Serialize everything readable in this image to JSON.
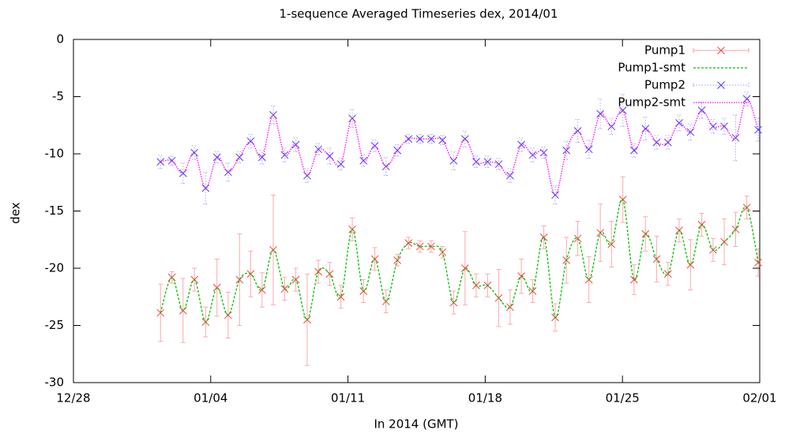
{
  "chart_data": {
    "type": "line",
    "title": "1-sequence Averaged Timeseries dex, 2014/01",
    "xlabel": "In 2014 (GMT)",
    "ylabel": "dex",
    "xlim": [
      0,
      35
    ],
    "xticks": [
      {
        "value": 0,
        "label": "12/28"
      },
      {
        "value": 7,
        "label": "01/04"
      },
      {
        "value": 14,
        "label": "01/11"
      },
      {
        "value": 21,
        "label": "01/18"
      },
      {
        "value": 28,
        "label": "01/25"
      },
      {
        "value": 35,
        "label": "02/01"
      }
    ],
    "ylim": [
      -30,
      0
    ],
    "yticks": [
      0,
      -5,
      -10,
      -15,
      -20,
      -25,
      -30
    ],
    "legend": "top-right",
    "x": [
      4.44,
      5.02,
      5.59,
      6.17,
      6.74,
      7.32,
      7.89,
      8.47,
      9.04,
      9.62,
      10.19,
      10.77,
      11.34,
      11.92,
      12.49,
      13.07,
      13.64,
      14.22,
      14.79,
      15.37,
      15.94,
      16.52,
      17.09,
      17.67,
      18.24,
      18.82,
      19.39,
      19.97,
      20.54,
      21.12,
      21.69,
      22.27,
      22.84,
      23.42,
      23.99,
      24.57,
      25.14,
      25.72,
      26.29,
      26.87,
      27.44,
      28.02,
      28.59,
      29.17,
      29.74,
      30.32,
      30.89,
      31.47,
      32.04,
      32.62,
      33.19,
      33.77,
      34.34,
      34.92
    ],
    "series": [
      {
        "name": "Pump1",
        "color": "#ff4040",
        "style": "points-errorbars",
        "values": [
          -23.9,
          -20.8,
          -23.7,
          -21.0,
          -24.7,
          -21.7,
          -24.1,
          -21.0,
          -20.5,
          -21.9,
          -18.4,
          -21.8,
          -21.0,
          -24.5,
          -20.3,
          -20.5,
          -22.5,
          -16.6,
          -22.0,
          -19.2,
          -22.9,
          -19.3,
          -17.8,
          -18.1,
          -18.1,
          -18.6,
          -23.0,
          -20.0,
          -21.5,
          -21.5,
          -22.6,
          -23.4,
          -20.7,
          -22.0,
          -17.3,
          -24.3,
          -19.3,
          -17.4,
          -21.0,
          -16.9,
          -17.9,
          -14.0,
          -21.0,
          -17.0,
          -19.2,
          -20.5,
          -16.7,
          -19.7,
          -16.2,
          -18.4,
          -17.7,
          -16.6,
          -14.7,
          -19.5
        ],
        "errors": [
          2.5,
          0.5,
          2.8,
          1.0,
          1.3,
          2.5,
          2.0,
          4.0,
          2.0,
          1.5,
          4.8,
          1.0,
          1.0,
          4.0,
          1.0,
          1.0,
          1.0,
          1.0,
          1.0,
          1.0,
          1.0,
          0.5,
          0.5,
          0.5,
          0.5,
          0.5,
          1.0,
          3.2,
          1.0,
          1.0,
          2.5,
          1.5,
          1.5,
          1.0,
          1.0,
          1.2,
          2.0,
          1.5,
          2.0,
          2.5,
          2.0,
          2.0,
          1.3,
          1.5,
          2.0,
          1.0,
          1.0,
          2.2,
          1.0,
          1.0,
          2.0,
          1.5,
          1.0,
          1.2
        ]
      },
      {
        "name": "Pump1-smt",
        "color": "#00c000",
        "style": "dashed",
        "values": [
          -23.9,
          -20.8,
          -23.7,
          -21.0,
          -24.7,
          -21.7,
          -24.1,
          -21.0,
          -20.5,
          -21.9,
          -18.4,
          -21.8,
          -21.0,
          -24.5,
          -20.3,
          -20.5,
          -22.5,
          -16.6,
          -22.0,
          -19.2,
          -22.9,
          -19.3,
          -17.8,
          -18.1,
          -18.1,
          -18.6,
          -23.0,
          -20.0,
          -21.5,
          -21.5,
          -22.6,
          -23.4,
          -20.7,
          -22.0,
          -17.3,
          -24.3,
          -19.3,
          -17.4,
          -21.0,
          -16.9,
          -17.9,
          -14.0,
          -21.0,
          -17.0,
          -19.2,
          -20.5,
          -16.7,
          -19.7,
          -16.2,
          -18.4,
          -17.7,
          -16.6,
          -14.7,
          -19.5
        ]
      },
      {
        "name": "Pump2",
        "color": "#4040ff",
        "style": "points-errorbars",
        "values": [
          -10.7,
          -10.6,
          -11.7,
          -9.9,
          -13.0,
          -10.3,
          -11.6,
          -10.3,
          -8.9,
          -10.3,
          -6.6,
          -10.1,
          -9.2,
          -11.9,
          -9.6,
          -10.2,
          -10.9,
          -6.9,
          -10.6,
          -9.3,
          -11.1,
          -9.7,
          -8.7,
          -8.7,
          -8.7,
          -8.8,
          -10.6,
          -8.7,
          -10.7,
          -10.7,
          -10.9,
          -11.9,
          -9.2,
          -10.1,
          -9.9,
          -13.6,
          -9.7,
          -8.0,
          -9.6,
          -6.5,
          -7.6,
          -6.2,
          -9.7,
          -7.8,
          -9.0,
          -9.0,
          -7.3,
          -8.1,
          -6.2,
          -7.6,
          -7.6,
          -8.6,
          -5.2,
          -7.9
        ],
        "errors": [
          0.6,
          0.4,
          0.9,
          0.6,
          1.4,
          0.5,
          0.8,
          0.5,
          0.6,
          0.6,
          0.8,
          0.6,
          0.6,
          0.6,
          0.5,
          0.7,
          0.5,
          0.8,
          0.5,
          0.5,
          0.8,
          0.5,
          0.4,
          0.4,
          0.4,
          0.4,
          0.8,
          0.7,
          0.5,
          0.5,
          0.5,
          0.6,
          0.6,
          0.6,
          0.5,
          0.8,
          0.8,
          1.0,
          0.8,
          1.3,
          0.7,
          1.4,
          0.6,
          1.0,
          0.6,
          0.6,
          0.7,
          0.7,
          0.7,
          0.6,
          0.7,
          2.0,
          0.6,
          1.0
        ]
      },
      {
        "name": "Pump2-smt",
        "color": "#ff00ff",
        "style": "dotted",
        "values": [
          -10.7,
          -10.6,
          -11.7,
          -9.9,
          -13.0,
          -10.3,
          -11.6,
          -10.3,
          -8.9,
          -10.3,
          -6.6,
          -10.1,
          -9.2,
          -11.9,
          -9.6,
          -10.2,
          -10.9,
          -6.9,
          -10.6,
          -9.3,
          -11.1,
          -9.7,
          -8.7,
          -8.7,
          -8.7,
          -8.8,
          -10.6,
          -8.7,
          -10.7,
          -10.7,
          -10.9,
          -11.9,
          -9.2,
          -10.1,
          -9.9,
          -13.6,
          -9.7,
          -8.0,
          -9.6,
          -6.5,
          -7.6,
          -6.2,
          -9.7,
          -7.8,
          -9.0,
          -9.0,
          -7.3,
          -8.1,
          -6.2,
          -7.6,
          -7.6,
          -8.6,
          -5.2,
          -7.9
        ]
      }
    ]
  }
}
